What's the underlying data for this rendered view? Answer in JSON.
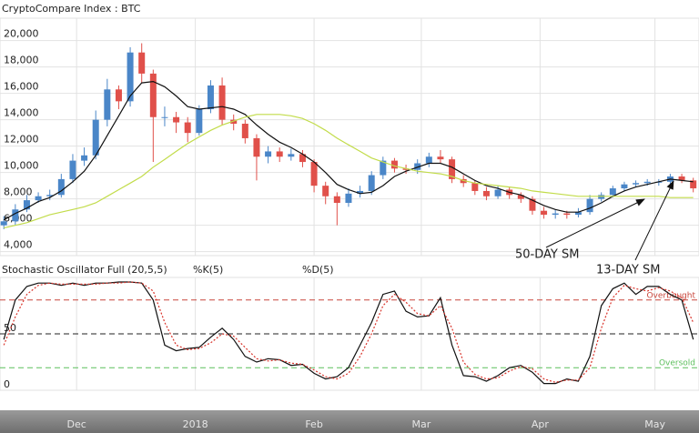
{
  "chart_data": [
    {
      "type": "candlestick",
      "title": "CryptoCompare Index : BTC",
      "x": [
        1,
        4,
        7,
        10,
        13,
        16,
        19,
        22,
        25,
        28,
        31,
        34,
        37,
        40,
        43,
        46,
        49,
        52,
        55,
        58,
        61,
        64,
        67,
        70,
        73,
        76,
        79,
        82,
        85,
        88,
        91,
        94,
        97,
        100,
        103,
        106,
        109,
        112,
        115,
        118,
        121,
        124,
        127,
        130,
        133,
        136,
        139,
        142,
        145,
        148,
        151,
        154,
        157,
        160,
        163,
        166,
        169,
        172,
        175,
        178,
        181
      ],
      "open": [
        6000,
        6300,
        7200,
        7900,
        8200,
        8300,
        9500,
        10900,
        11300,
        14000,
        16300,
        15400,
        19100,
        17500,
        14200,
        14200,
        13800,
        13000,
        14800,
        16600,
        14000,
        13700,
        12600,
        11200,
        11600,
        11200,
        11400,
        10800,
        9000,
        8200,
        7700,
        8400,
        8600,
        9800,
        10900,
        10300,
        10200,
        10700,
        11200,
        11000,
        9500,
        9200,
        8600,
        8200,
        8700,
        8300,
        8000,
        7100,
        6800,
        6900,
        6800,
        7000,
        8000,
        8300,
        8800,
        9100,
        9200,
        9300,
        9300,
        9700,
        9400
      ],
      "high": [
        6700,
        7600,
        8300,
        8500,
        8700,
        9900,
        11400,
        11900,
        14700,
        17100,
        16600,
        19500,
        19800,
        17800,
        15000,
        14600,
        14200,
        15100,
        17000,
        17200,
        14400,
        14000,
        12900,
        12000,
        11900,
        11800,
        11700,
        11000,
        9300,
        8500,
        8800,
        9000,
        10100,
        11200,
        11100,
        10600,
        11000,
        11500,
        11700,
        11200,
        9800,
        9400,
        8900,
        9000,
        8900,
        8500,
        8200,
        7400,
        7200,
        7100,
        7300,
        8300,
        8500,
        9000,
        9300,
        9400,
        9500,
        9500,
        9900,
        9900,
        9600
      ],
      "low": [
        5700,
        6000,
        7000,
        7700,
        7900,
        8100,
        9200,
        10500,
        11000,
        13500,
        14800,
        15000,
        16800,
        10800,
        13500,
        13000,
        12300,
        12800,
        14500,
        13600,
        13200,
        12200,
        9400,
        10700,
        10800,
        10900,
        10400,
        8500,
        7600,
        6000,
        7400,
        8100,
        8300,
        9500,
        10000,
        9900,
        9900,
        10400,
        10700,
        9200,
        8900,
        8300,
        7900,
        8000,
        8000,
        7700,
        6800,
        6500,
        6500,
        6500,
        6600,
        6800,
        7800,
        8100,
        8600,
        8900,
        9000,
        9000,
        9100,
        9200,
        8500
      ],
      "close": [
        6300,
        7200,
        7900,
        8200,
        8300,
        9500,
        10900,
        11300,
        14000,
        16300,
        15400,
        19100,
        17500,
        14200,
        14200,
        13800,
        13000,
        14800,
        16600,
        14000,
        13700,
        12600,
        11200,
        11600,
        11200,
        11400,
        10800,
        9000,
        8200,
        7700,
        8400,
        8600,
        9800,
        10900,
        10300,
        10200,
        10700,
        11200,
        11000,
        9500,
        9200,
        8600,
        8200,
        8700,
        8300,
        8000,
        7100,
        6800,
        6900,
        6800,
        7000,
        8000,
        8300,
        8800,
        9100,
        9200,
        9300,
        9300,
        9700,
        9400,
        8800
      ],
      "up_color": "#4a86c8",
      "down_color": "#e0504a",
      "overlays": [
        {
          "color": "#111111",
          "values": [
            6400,
            6900,
            7300,
            7800,
            8100,
            8600,
            9300,
            10100,
            11300,
            12800,
            14300,
            15800,
            16800,
            16900,
            16500,
            15800,
            15000,
            14800,
            14900,
            15000,
            14800,
            14400,
            13600,
            12900,
            12300,
            11900,
            11400,
            10800,
            10000,
            9100,
            8700,
            8400,
            8500,
            9000,
            9700,
            10100,
            10400,
            10700,
            10700,
            10400,
            9900,
            9400,
            9000,
            8800,
            8500,
            8300,
            7900,
            7500,
            7200,
            7000,
            7000,
            7300,
            7700,
            8200,
            8600,
            8900,
            9100,
            9300,
            9500,
            9400,
            9300
          ]
        },
        {
          "color": "#c2dc4a",
          "values": [
            5800,
            6000,
            6200,
            6500,
            6800,
            7000,
            7200,
            7400,
            7700,
            8200,
            8700,
            9200,
            9700,
            10400,
            11000,
            11600,
            12200,
            12700,
            13200,
            13600,
            13900,
            14200,
            14400,
            14400,
            14400,
            14300,
            14100,
            13700,
            13200,
            12600,
            12100,
            11600,
            11100,
            10800,
            10500,
            10300,
            10100,
            10000,
            9900,
            9700,
            9400,
            9200,
            9100,
            9000,
            8900,
            8800,
            8600,
            8500,
            8400,
            8300,
            8200,
            8200,
            8200,
            8200,
            8200,
            8200,
            8200,
            8200,
            8100,
            8100,
            8100
          ]
        }
      ],
      "xlim": [
        0,
        182.5
      ],
      "xticks": [
        {
          "value": 20,
          "label": "Dec"
        },
        {
          "value": 51,
          "label": "2018"
        },
        {
          "value": 82,
          "label": "Feb"
        },
        {
          "value": 110,
          "label": "Mar"
        },
        {
          "value": 141,
          "label": "Apr"
        },
        {
          "value": 171,
          "label": "May"
        }
      ],
      "ylim": [
        3700,
        21700
      ],
      "yticks": [
        {
          "value": 4000,
          "label": "4,000"
        },
        {
          "value": 6000,
          "label": "6,000"
        },
        {
          "value": 8000,
          "label": "8,000"
        },
        {
          "value": 10000,
          "label": "10,000"
        },
        {
          "value": 12000,
          "label": "12,000"
        },
        {
          "value": 14000,
          "label": "14,000"
        },
        {
          "value": 16000,
          "label": "16,000"
        },
        {
          "value": 18000,
          "label": "18,000"
        },
        {
          "value": 20000,
          "label": "20,000"
        }
      ],
      "grid": true,
      "annotations": [
        "50-DAY SM",
        "13-DAY SM"
      ]
    },
    {
      "type": "line",
      "title": "Stochastic Oscillator Full (20,5,5)",
      "x": [
        1,
        4,
        7,
        10,
        13,
        16,
        19,
        22,
        25,
        28,
        31,
        34,
        37,
        40,
        43,
        46,
        49,
        52,
        55,
        58,
        61,
        64,
        67,
        70,
        73,
        76,
        79,
        82,
        85,
        88,
        91,
        94,
        97,
        100,
        103,
        106,
        109,
        112,
        115,
        118,
        121,
        124,
        127,
        130,
        133,
        136,
        139,
        142,
        145,
        148,
        151,
        154,
        157,
        160,
        163,
        166,
        169,
        172,
        175,
        178,
        181
      ],
      "series": [
        {
          "name": "%K(5)",
          "color": "#111111",
          "values": [
            45,
            80,
            92,
            95,
            95,
            93,
            95,
            93,
            95,
            95,
            96,
            96,
            95,
            80,
            40,
            35,
            37,
            38,
            47,
            55,
            45,
            30,
            25,
            28,
            27,
            22,
            23,
            15,
            10,
            12,
            20,
            40,
            60,
            85,
            88,
            70,
            65,
            66,
            82,
            40,
            13,
            12,
            8,
            13,
            20,
            22,
            16,
            6,
            6,
            10,
            8,
            30,
            75,
            90,
            95,
            85,
            92,
            92,
            85,
            80,
            45
          ]
        },
        {
          "name": "%D(5)",
          "color": "#d9342b",
          "values": [
            40,
            65,
            85,
            93,
            95,
            94,
            94,
            94,
            94,
            95,
            95,
            96,
            95,
            88,
            60,
            40,
            36,
            37,
            42,
            50,
            48,
            38,
            28,
            26,
            27,
            24,
            23,
            18,
            12,
            10,
            15,
            30,
            50,
            75,
            85,
            78,
            68,
            66,
            75,
            55,
            25,
            14,
            10,
            11,
            17,
            21,
            19,
            10,
            7,
            9,
            9,
            20,
            55,
            82,
            93,
            90,
            88,
            91,
            88,
            82,
            60
          ]
        }
      ],
      "levels": [
        {
          "value": 80,
          "label": "Overbought",
          "color": "#c8473c"
        },
        {
          "value": 50,
          "color": "#222222"
        },
        {
          "value": 20,
          "label": "Oversold",
          "color": "#5cbf5c"
        }
      ],
      "xlim": [
        0,
        182.5
      ],
      "ylim": [
        0,
        100
      ],
      "yticks": [
        0,
        50
      ]
    }
  ]
}
